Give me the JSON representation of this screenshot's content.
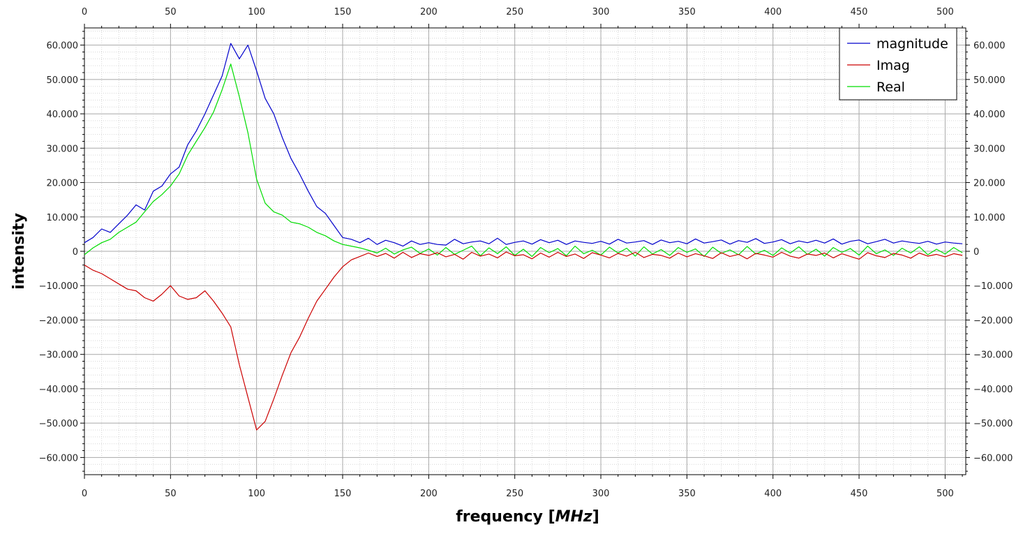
{
  "chart_data": {
    "type": "line",
    "xlabel": "frequency",
    "xunit": "MHz",
    "ylabel": "intensity",
    "xlim": [
      0,
      512
    ],
    "ylim": [
      -65000,
      65000
    ],
    "x_ticks": [
      0,
      50,
      100,
      150,
      200,
      250,
      300,
      350,
      400,
      450,
      500
    ],
    "x_tick_labels": [
      "0",
      "50",
      "100",
      "150",
      "200",
      "250",
      "300",
      "350",
      "400",
      "450",
      "500"
    ],
    "y_ticks": [
      60000,
      50000,
      40000,
      30000,
      20000,
      10000,
      0,
      -10000,
      -20000,
      -30000,
      -40000,
      -50000,
      -60000
    ],
    "y_tick_labels": [
      "60.000",
      "50.000",
      "40.000",
      "30.000",
      "20.000",
      "10.000",
      "0",
      "−10.000",
      "−20.000",
      "−30.000",
      "−40.000",
      "−50.000",
      "−60.000"
    ],
    "grid": true,
    "legend_position": "top-right",
    "x": [
      0,
      5,
      10,
      15,
      20,
      25,
      30,
      35,
      40,
      45,
      50,
      55,
      60,
      65,
      70,
      75,
      80,
      85,
      90,
      95,
      100,
      105,
      110,
      115,
      120,
      125,
      130,
      135,
      140,
      145,
      150,
      155,
      160,
      165,
      170,
      175,
      180,
      185,
      190,
      195,
      200,
      205,
      210,
      215,
      220,
      225,
      230,
      235,
      240,
      245,
      250,
      255,
      260,
      265,
      270,
      275,
      280,
      285,
      290,
      295,
      300,
      305,
      310,
      315,
      320,
      325,
      330,
      335,
      340,
      345,
      350,
      355,
      360,
      365,
      370,
      375,
      380,
      385,
      390,
      395,
      400,
      405,
      410,
      415,
      420,
      425,
      430,
      435,
      440,
      445,
      450,
      455,
      460,
      465,
      470,
      475,
      480,
      485,
      490,
      495,
      500,
      505,
      510
    ],
    "series": [
      {
        "name": "magnitude",
        "color": "#0000cc",
        "values": [
          2500,
          4000,
          6500,
          5500,
          8000,
          10500,
          13500,
          12000,
          17500,
          19000,
          22500,
          24500,
          31000,
          35000,
          40000,
          45500,
          51000,
          60500,
          56000,
          60000,
          52500,
          44500,
          40000,
          33000,
          27000,
          22500,
          17500,
          13000,
          11000,
          7500,
          4000,
          3500,
          2500,
          3800,
          2000,
          3200,
          2500,
          1500,
          3000,
          2000,
          2500,
          2000,
          1800,
          3500,
          2200,
          2700,
          3000,
          2200,
          3800,
          2000,
          2600,
          3000,
          2100,
          3400,
          2500,
          3200,
          2000,
          3000,
          2600,
          2300,
          2900,
          2100,
          3500,
          2400,
          2700,
          3100,
          2000,
          3300,
          2500,
          2900,
          2200,
          3600,
          2400,
          2800,
          3300,
          2100,
          3100,
          2600,
          3700,
          2300,
          2700,
          3400,
          2200,
          3000,
          2500,
          3200,
          2400,
          3600,
          2100,
          2900,
          3300,
          2200,
          2800,
          3500,
          2400,
          3000,
          2600,
          2300,
          2900,
          2100,
          2700,
          2400,
          2200
        ]
      },
      {
        "name": "Imag",
        "color": "#cc0000",
        "values": [
          -4000,
          -5500,
          -6500,
          -8000,
          -9500,
          -11000,
          -11500,
          -13500,
          -14500,
          -12500,
          -10000,
          -13000,
          -14000,
          -13500,
          -11500,
          -14500,
          -18000,
          -22000,
          -33000,
          -42500,
          -52000,
          -49500,
          -43000,
          -36000,
          -29500,
          -25000,
          -19500,
          -14500,
          -11000,
          -7500,
          -4500,
          -2500,
          -1500,
          -500,
          -1500,
          -600,
          -2000,
          -300,
          -1800,
          -700,
          -1200,
          -400,
          -1600,
          -900,
          -2300,
          -300,
          -1400,
          -800,
          -1900,
          -200,
          -1300,
          -1000,
          -2200,
          -500,
          -1700,
          -300,
          -1500,
          -800,
          -2100,
          -400,
          -1100,
          -1900,
          -600,
          -1400,
          -300,
          -1800,
          -900,
          -1200,
          -2000,
          -500,
          -1600,
          -700,
          -1300,
          -2100,
          -400,
          -1500,
          -900,
          -2200,
          -600,
          -1100,
          -1700,
          -300,
          -1400,
          -2000,
          -800,
          -1200,
          -500,
          -1900,
          -700,
          -1500,
          -2300,
          -400,
          -1300,
          -1800,
          -600,
          -1100,
          -2000,
          -500,
          -1400,
          -900,
          -1600,
          -700,
          -1200
        ]
      },
      {
        "name": "Real",
        "color": "#00dd00",
        "values": [
          -1000,
          1000,
          2500,
          3500,
          5500,
          7000,
          8500,
          11500,
          14500,
          16500,
          19000,
          22500,
          28000,
          32000,
          36000,
          40500,
          47000,
          54500,
          45000,
          34500,
          21000,
          14000,
          11500,
          10500,
          8500,
          8000,
          7000,
          5500,
          4500,
          3000,
          2000,
          1500,
          1000,
          300,
          -500,
          900,
          -800,
          400,
          1200,
          -600,
          700,
          -1100,
          1100,
          -900,
          300,
          1500,
          -1300,
          1000,
          -700,
          1300,
          -1200,
          600,
          -1500,
          1100,
          -400,
          800,
          -1300,
          1500,
          -700,
          300,
          -1100,
          1200,
          -500,
          900,
          -1400,
          1300,
          -800,
          500,
          -1200,
          1100,
          -300,
          700,
          -1500,
          1200,
          -600,
          400,
          -1000,
          1400,
          -800,
          300,
          -1200,
          1000,
          -500,
          1300,
          -900,
          600,
          -1400,
          1100,
          -300,
          800,
          -1100,
          1500,
          -700,
          400,
          -1200,
          900,
          -500,
          1300,
          -1000,
          600,
          -800,
          1100,
          -400
        ]
      }
    ]
  }
}
